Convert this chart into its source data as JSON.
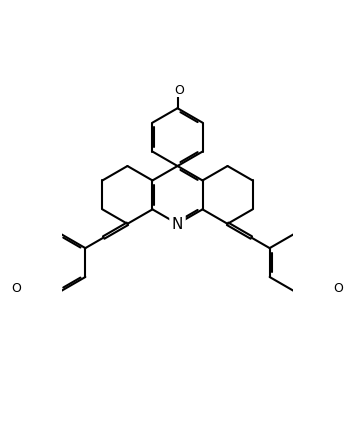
{
  "bond_color": "#000000",
  "bg_color": "#ffffff",
  "lw": 1.5,
  "dbo": 0.055,
  "figsize": [
    3.55,
    4.27
  ],
  "dpi": 100,
  "xlim": [
    -4.6,
    4.6
  ],
  "ylim": [
    -5.6,
    4.8
  ]
}
